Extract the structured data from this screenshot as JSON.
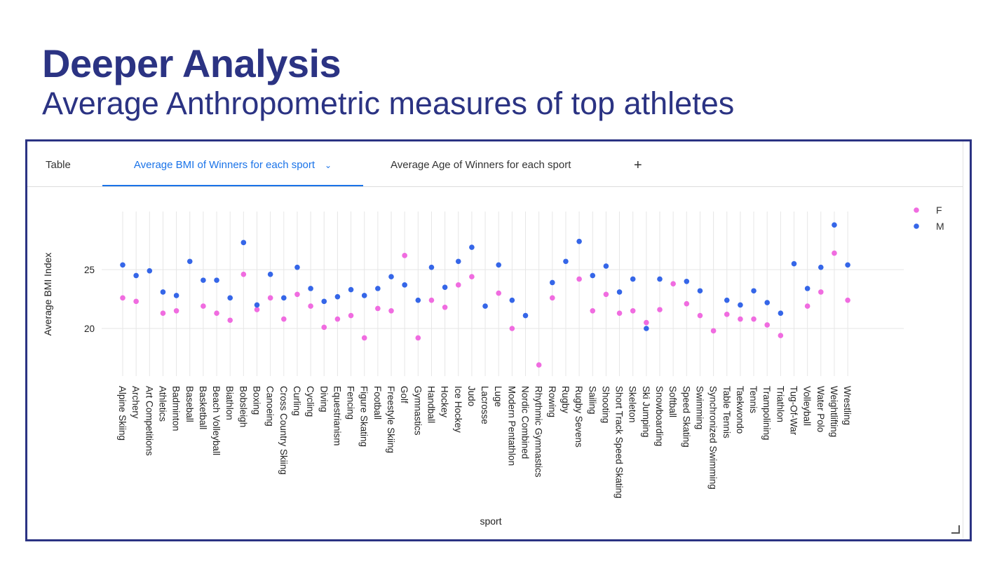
{
  "page": {
    "title": "Deeper Analysis",
    "subtitle": "Average Anthropometric measures of top athletes"
  },
  "tabs": [
    {
      "label": "Table"
    },
    {
      "label": "Average BMI of Winners for each sport",
      "active": true
    },
    {
      "label": "Average Age of Winners for each sport"
    },
    {
      "label": "+"
    }
  ],
  "colors": {
    "F": "#f06ce0",
    "M": "#3566e8",
    "accent": "#2b3383",
    "tab_active": "#1a73e8"
  },
  "chart_data": {
    "type": "scatter",
    "xlabel": "sport",
    "ylabel": "Average BMI Index",
    "yticks": [
      20,
      25
    ],
    "ylim": [
      16.3,
      29.6
    ],
    "legend": [
      "F",
      "M"
    ],
    "legend_position": "top-right",
    "grid": true,
    "categories": [
      "Alpine Skiing",
      "Archery",
      "Art Competitions",
      "Athletics",
      "Badminton",
      "Baseball",
      "Basketball",
      "Beach Volleyball",
      "Biathlon",
      "Bobsleigh",
      "Boxing",
      "Canoeing",
      "Cross Country Skiing",
      "Curling",
      "Cycling",
      "Diving",
      "Equestrianism",
      "Fencing",
      "Figure Skating",
      "Football",
      "Freestyle Skiing",
      "Golf",
      "Gymnastics",
      "Handball",
      "Hockey",
      "Ice Hockey",
      "Judo",
      "Lacrosse",
      "Luge",
      "Modern Pentathlon",
      "Nordic Combined",
      "Rhythmic Gymnastics",
      "Rowing",
      "Rugby",
      "Rugby Sevens",
      "Sailing",
      "Shooting",
      "Short Track Speed Skating",
      "Skeleton",
      "Ski Jumping",
      "Snowboarding",
      "Softball",
      "Speed Skating",
      "Swimming",
      "Synchronized Swimming",
      "Table Tennis",
      "Taekwondo",
      "Tennis",
      "Trampolining",
      "Triathlon",
      "Tug-Of-War",
      "Volleyball",
      "Water Polo",
      "Weightlifting",
      "Wrestling"
    ],
    "series": [
      {
        "name": "F",
        "values": [
          22.6,
          22.3,
          null,
          21.3,
          21.5,
          null,
          21.9,
          21.3,
          20.7,
          24.6,
          21.6,
          22.6,
          20.8,
          22.9,
          21.9,
          20.1,
          20.8,
          21.1,
          19.2,
          21.7,
          21.5,
          26.2,
          19.2,
          22.4,
          21.8,
          23.7,
          24.4,
          null,
          23.0,
          20.0,
          null,
          16.9,
          22.6,
          null,
          24.2,
          21.5,
          22.9,
          21.3,
          21.5,
          20.5,
          21.6,
          23.8,
          22.1,
          21.1,
          19.8,
          21.2,
          20.8,
          20.8,
          20.3,
          19.4,
          null,
          21.9,
          23.1,
          26.4,
          22.4
        ]
      },
      {
        "name": "M",
        "values": [
          25.4,
          24.5,
          24.9,
          23.1,
          22.8,
          25.7,
          24.1,
          24.1,
          22.6,
          27.3,
          22.0,
          24.6,
          22.6,
          25.2,
          23.4,
          22.3,
          22.7,
          23.3,
          22.8,
          23.4,
          24.4,
          23.7,
          22.4,
          25.2,
          23.5,
          25.7,
          26.9,
          21.9,
          25.4,
          22.4,
          21.1,
          null,
          23.9,
          25.7,
          27.4,
          24.5,
          25.3,
          23.1,
          24.2,
          20.0,
          24.2,
          null,
          24.0,
          23.2,
          null,
          22.4,
          22.0,
          23.2,
          22.2,
          21.3,
          25.5,
          23.4,
          25.2,
          28.8,
          25.4
        ]
      }
    ]
  }
}
